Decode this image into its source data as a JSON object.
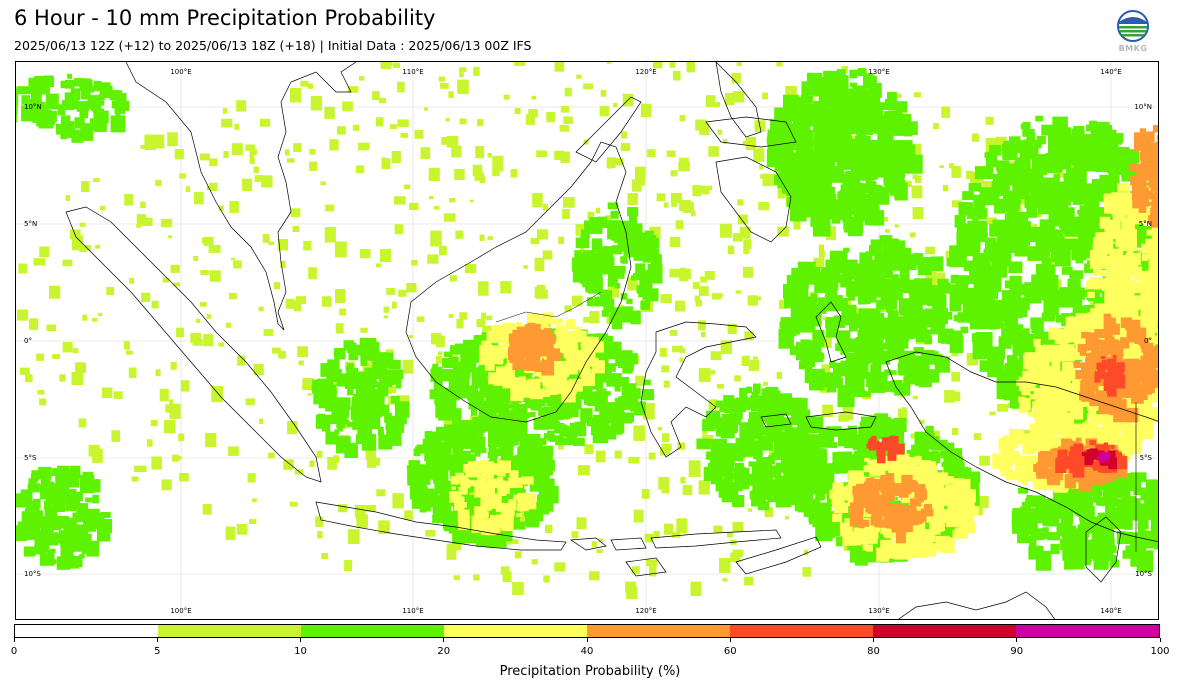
{
  "header": {
    "title": "6 Hour - 10 mm Precipitation Probability",
    "subtitle": "2025/06/13 12Z (+12) to 2025/06/13 18Z (+18) | Initial Data : 2025/06/13 00Z IFS",
    "logo_text": "BMKG"
  },
  "map": {
    "lon_labels": [
      "100°E",
      "110°E",
      "120°E",
      "130°E",
      "140°E"
    ],
    "lat_labels": [
      "10°N",
      "5°N",
      "0°",
      "5°S",
      "10°S"
    ],
    "colors": {
      "land_outline": "#000000",
      "gridline": "#d8d8d8"
    }
  },
  "colorbar": {
    "label": "Precipitation Probability (%)",
    "ticks": [
      "0",
      "5",
      "10",
      "20",
      "40",
      "60",
      "80",
      "90",
      "100"
    ],
    "colors": [
      "#ffffff",
      "#c8f52e",
      "#5ff200",
      "#ffff5f",
      "#ff9a32",
      "#ff4a2a",
      "#d4002c",
      "#d000a0"
    ]
  }
}
